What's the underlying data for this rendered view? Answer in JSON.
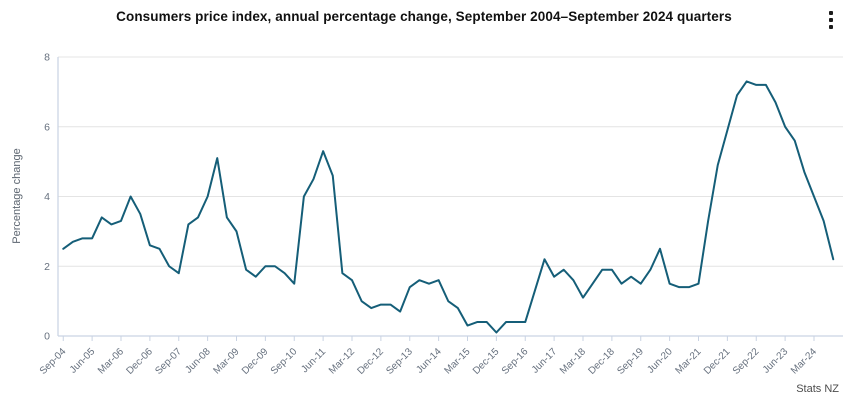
{
  "header": {
    "title": "Consumers price index, annual percentage change, September 2004–September 2024 quarters"
  },
  "footer": {
    "attribution": "Stats NZ"
  },
  "colors": {
    "line": "#155e78",
    "grid": "#e4e4e4",
    "axis": "#c9d3e3",
    "tick_label": "#66707e",
    "title": "#111111",
    "axis_title": "#5c6570",
    "attribution": "#4c4c4c",
    "background": "#ffffff",
    "menu_icon": "#1c1c1c"
  },
  "chart_data": {
    "type": "line",
    "title": "Consumers price index, annual percentage change, September 2004–September 2024 quarters",
    "xlabel": "",
    "ylabel": "Percentage change",
    "ylim": [
      0,
      8
    ],
    "y_ticks": [
      0,
      2,
      4,
      6,
      8
    ],
    "x_tick_every": 3,
    "grid": "horizontal-only",
    "legend_position": "none",
    "series_name": "CPI annual percentage change",
    "x": [
      "Sep-04",
      "Dec-04",
      "Mar-05",
      "Jun-05",
      "Sep-05",
      "Dec-05",
      "Mar-06",
      "Jun-06",
      "Sep-06",
      "Dec-06",
      "Mar-07",
      "Jun-07",
      "Sep-07",
      "Dec-07",
      "Mar-08",
      "Jun-08",
      "Sep-08",
      "Dec-08",
      "Mar-09",
      "Jun-09",
      "Sep-09",
      "Dec-09",
      "Mar-10",
      "Jun-10",
      "Sep-10",
      "Dec-10",
      "Mar-11",
      "Jun-11",
      "Sep-11",
      "Dec-11",
      "Mar-12",
      "Jun-12",
      "Sep-12",
      "Dec-12",
      "Mar-13",
      "Jun-13",
      "Sep-13",
      "Dec-13",
      "Mar-14",
      "Jun-14",
      "Sep-14",
      "Dec-14",
      "Mar-15",
      "Jun-15",
      "Sep-15",
      "Dec-15",
      "Mar-16",
      "Jun-16",
      "Sep-16",
      "Dec-16",
      "Mar-17",
      "Jun-17",
      "Sep-17",
      "Dec-17",
      "Mar-18",
      "Jun-18",
      "Sep-18",
      "Dec-18",
      "Mar-19",
      "Jun-19",
      "Sep-19",
      "Dec-19",
      "Mar-20",
      "Jun-20",
      "Sep-20",
      "Dec-20",
      "Mar-21",
      "Jun-21",
      "Sep-21",
      "Dec-21",
      "Mar-22",
      "Jun-22",
      "Sep-22",
      "Dec-22",
      "Mar-23",
      "Jun-23",
      "Sep-23",
      "Dec-23",
      "Mar-24",
      "Jun-24",
      "Sep-24"
    ],
    "values": [
      2.5,
      2.7,
      2.8,
      2.8,
      3.4,
      3.2,
      3.3,
      4.0,
      3.5,
      2.6,
      2.5,
      2.0,
      1.8,
      3.2,
      3.4,
      4.0,
      5.1,
      3.4,
      3.0,
      1.9,
      1.7,
      2.0,
      2.0,
      1.8,
      1.5,
      4.0,
      4.5,
      5.3,
      4.6,
      1.8,
      1.6,
      1.0,
      0.8,
      0.9,
      0.9,
      0.7,
      1.4,
      1.6,
      1.5,
      1.6,
      1.0,
      0.8,
      0.3,
      0.4,
      0.4,
      0.1,
      0.4,
      0.4,
      0.4,
      1.3,
      2.2,
      1.7,
      1.9,
      1.6,
      1.1,
      1.5,
      1.9,
      1.9,
      1.5,
      1.7,
      1.5,
      1.9,
      2.5,
      1.5,
      1.4,
      1.4,
      1.5,
      3.3,
      4.9,
      5.9,
      6.9,
      7.3,
      7.2,
      7.2,
      6.7,
      6.0,
      5.6,
      4.7,
      4.0,
      3.3,
      2.2
    ]
  }
}
